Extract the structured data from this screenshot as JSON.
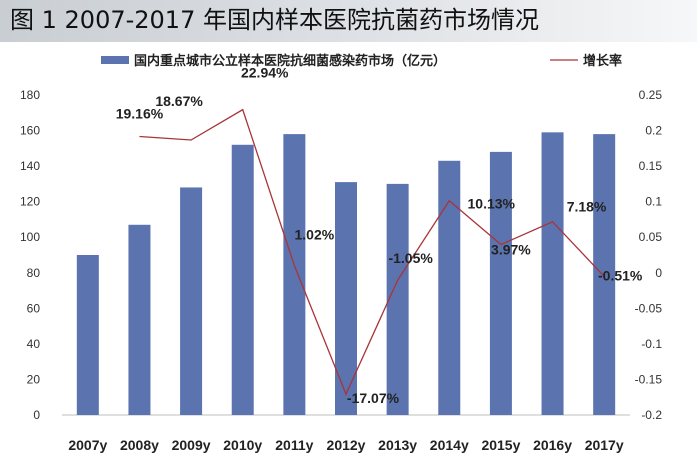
{
  "figure": {
    "title": "图 1  2007-2017 年国内样本医院抗菌药市场情况"
  },
  "chart_data": {
    "type": "bar",
    "categories": [
      "2007y",
      "2008y",
      "2009y",
      "2010y",
      "2011y",
      "2012y",
      "2013y",
      "2014y",
      "2015y",
      "2016y",
      "2017y"
    ],
    "series": [
      {
        "name": "国内重点城市公立样本医院抗细菌感染药市场（亿元）",
        "type": "bar",
        "axis": "left",
        "color": "#5b73ae",
        "values": [
          90,
          107,
          128,
          152,
          158,
          131,
          130,
          143,
          148,
          159,
          158
        ]
      },
      {
        "name": "增长率",
        "type": "line",
        "axis": "right",
        "color": "#a8353a",
        "values": [
          null,
          0.1916,
          0.1867,
          0.2294,
          0.0102,
          -0.1707,
          -0.0105,
          0.1013,
          0.0397,
          0.0718,
          -0.0051
        ]
      }
    ],
    "data_labels": [
      {
        "index": 1,
        "text": "19.16%"
      },
      {
        "index": 2,
        "text": "18.67%"
      },
      {
        "index": 3,
        "text": "22.94%"
      },
      {
        "index": 4,
        "text": "1.02%"
      },
      {
        "index": 5,
        "text": "-17.07%"
      },
      {
        "index": 6,
        "text": "-1.05%"
      },
      {
        "index": 7,
        "text": "10.13%"
      },
      {
        "index": 8,
        "text": "3.97%"
      },
      {
        "index": 9,
        "text": "7.18%"
      },
      {
        "index": 10,
        "text": "-0.51%"
      }
    ],
    "y_left": {
      "ylim": [
        0,
        180
      ],
      "ticks": [
        "0",
        "20",
        "40",
        "60",
        "80",
        "100",
        "120",
        "140",
        "160",
        "180"
      ]
    },
    "y_right": {
      "ylim": [
        -0.2,
        0.25
      ],
      "ticks": [
        "-0.2",
        "-0.15",
        "-0.1",
        "-0.05",
        "0",
        "0.05",
        "0.1",
        "0.15",
        "0.2",
        "0.25"
      ]
    },
    "xlabel": "",
    "ylabel": "",
    "legend_position": "top",
    "grid": false
  }
}
